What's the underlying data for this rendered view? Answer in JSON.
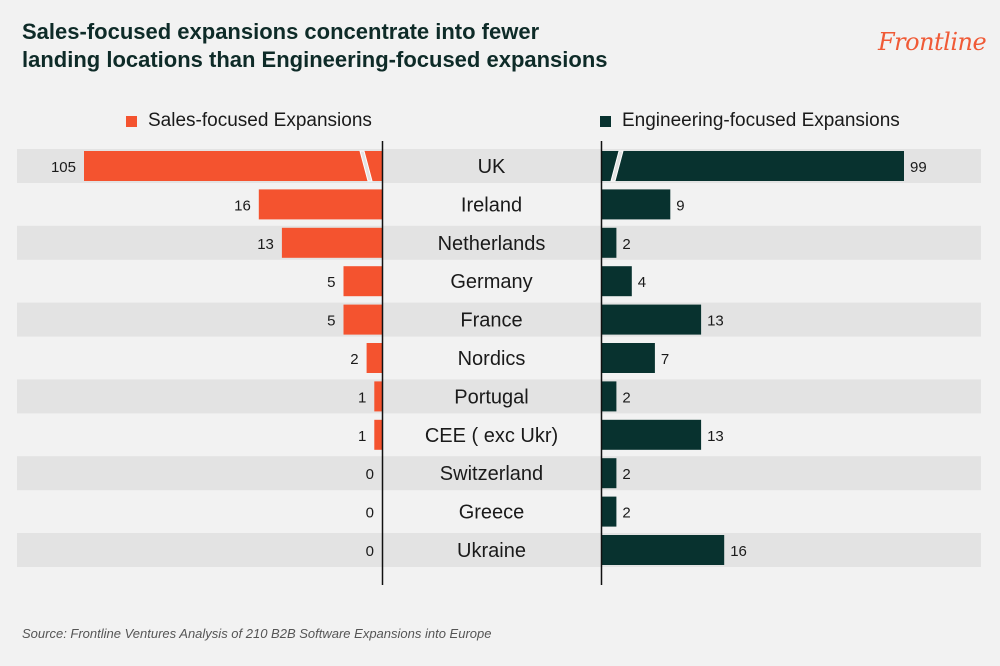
{
  "title_lines": [
    "Sales-focused expansions concentrate into fewer",
    "landing locations than Engineering-focused expansions"
  ],
  "logo_text": "Frontline",
  "source": "Source: Frontline Ventures Analysis of 210 B2B Software Expansions into Europe",
  "colors": {
    "sales": "#f4532f",
    "engineering": "#08322f",
    "row_band": "#e3e3e3",
    "axis": "#111111"
  },
  "chart_data": {
    "type": "bar",
    "orientation": "horizontal-butterfly",
    "title": "Sales-focused expansions concentrate into fewer landing locations than Engineering-focused expansions",
    "categories": [
      "UK",
      "Ireland",
      "Netherlands",
      "Germany",
      "France",
      "Nordics",
      "Portugal",
      "CEE ( exc Ukr)",
      "Switzerland",
      "Greece",
      "Ukraine"
    ],
    "series": [
      {
        "name": "Sales-focused Expansions",
        "values": [
          105,
          16,
          13,
          5,
          5,
          2,
          1,
          1,
          0,
          0,
          0
        ],
        "color": "#f4532f",
        "side": "left"
      },
      {
        "name": "Engineering-focused Expansions",
        "values": [
          99,
          9,
          2,
          4,
          13,
          7,
          2,
          13,
          2,
          2,
          16
        ],
        "color": "#08322f",
        "side": "right"
      }
    ],
    "axis_break_on": "UK",
    "legend_position": "top",
    "grid": false
  }
}
